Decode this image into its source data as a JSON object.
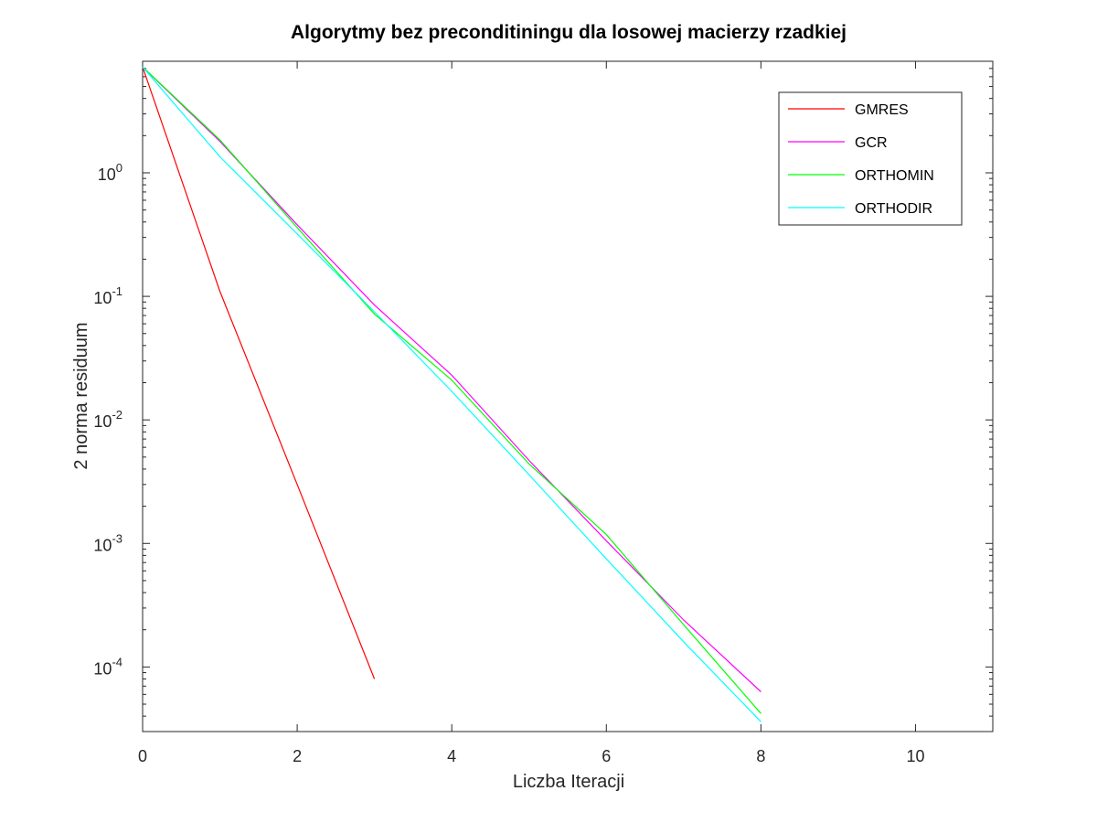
{
  "chart_data": {
    "type": "line",
    "title": "Algorytmy bez preconditiningu dla losowej macierzy rzadkiej",
    "xlabel": "Liczba Iteracji",
    "ylabel": "2 norma residuum",
    "xlim": [
      0,
      11
    ],
    "ylim": [
      3e-05,
      8
    ],
    "yscale": "log",
    "grid": false,
    "legend_position": "top-right",
    "x_ticks": [
      0,
      2,
      4,
      6,
      8,
      10
    ],
    "x_tick_labels": [
      "0",
      "2",
      "4",
      "6",
      "8",
      "10"
    ],
    "y_ticks": [
      {
        "value": 1,
        "base": "10",
        "exp": "0"
      },
      {
        "value": 0.1,
        "base": "10",
        "exp": "-1"
      },
      {
        "value": 0.01,
        "base": "10",
        "exp": "-2"
      },
      {
        "value": 0.001,
        "base": "10",
        "exp": "-3"
      },
      {
        "value": 0.0001,
        "base": "10",
        "exp": "-4"
      }
    ],
    "series": [
      {
        "name": "GMRES",
        "color": "#ff0000",
        "x": [
          0,
          1,
          2,
          3
        ],
        "y": [
          7.2,
          0.11,
          0.003,
          8e-05
        ]
      },
      {
        "name": "GCR",
        "color": "#ff00ff",
        "x": [
          0,
          1,
          2,
          3,
          4,
          5,
          6,
          7,
          8
        ],
        "y": [
          7.2,
          1.8,
          0.38,
          0.085,
          0.023,
          0.0047,
          0.00105,
          0.00024,
          6.3e-05
        ]
      },
      {
        "name": "ORTHOMIN",
        "color": "#00ff00",
        "x": [
          0,
          1,
          2,
          3,
          4,
          5,
          6,
          7,
          8
        ],
        "y": [
          7.2,
          1.85,
          0.36,
          0.072,
          0.021,
          0.0044,
          0.00118,
          0.00022,
          4.2e-05
        ]
      },
      {
        "name": "ORTHODIR",
        "color": "#00ffff",
        "x": [
          0,
          1,
          2,
          3,
          4,
          5,
          6,
          7,
          8
        ],
        "y": [
          7.2,
          1.35,
          0.32,
          0.075,
          0.017,
          0.0036,
          0.00075,
          0.00016,
          3.6e-05
        ]
      }
    ]
  }
}
